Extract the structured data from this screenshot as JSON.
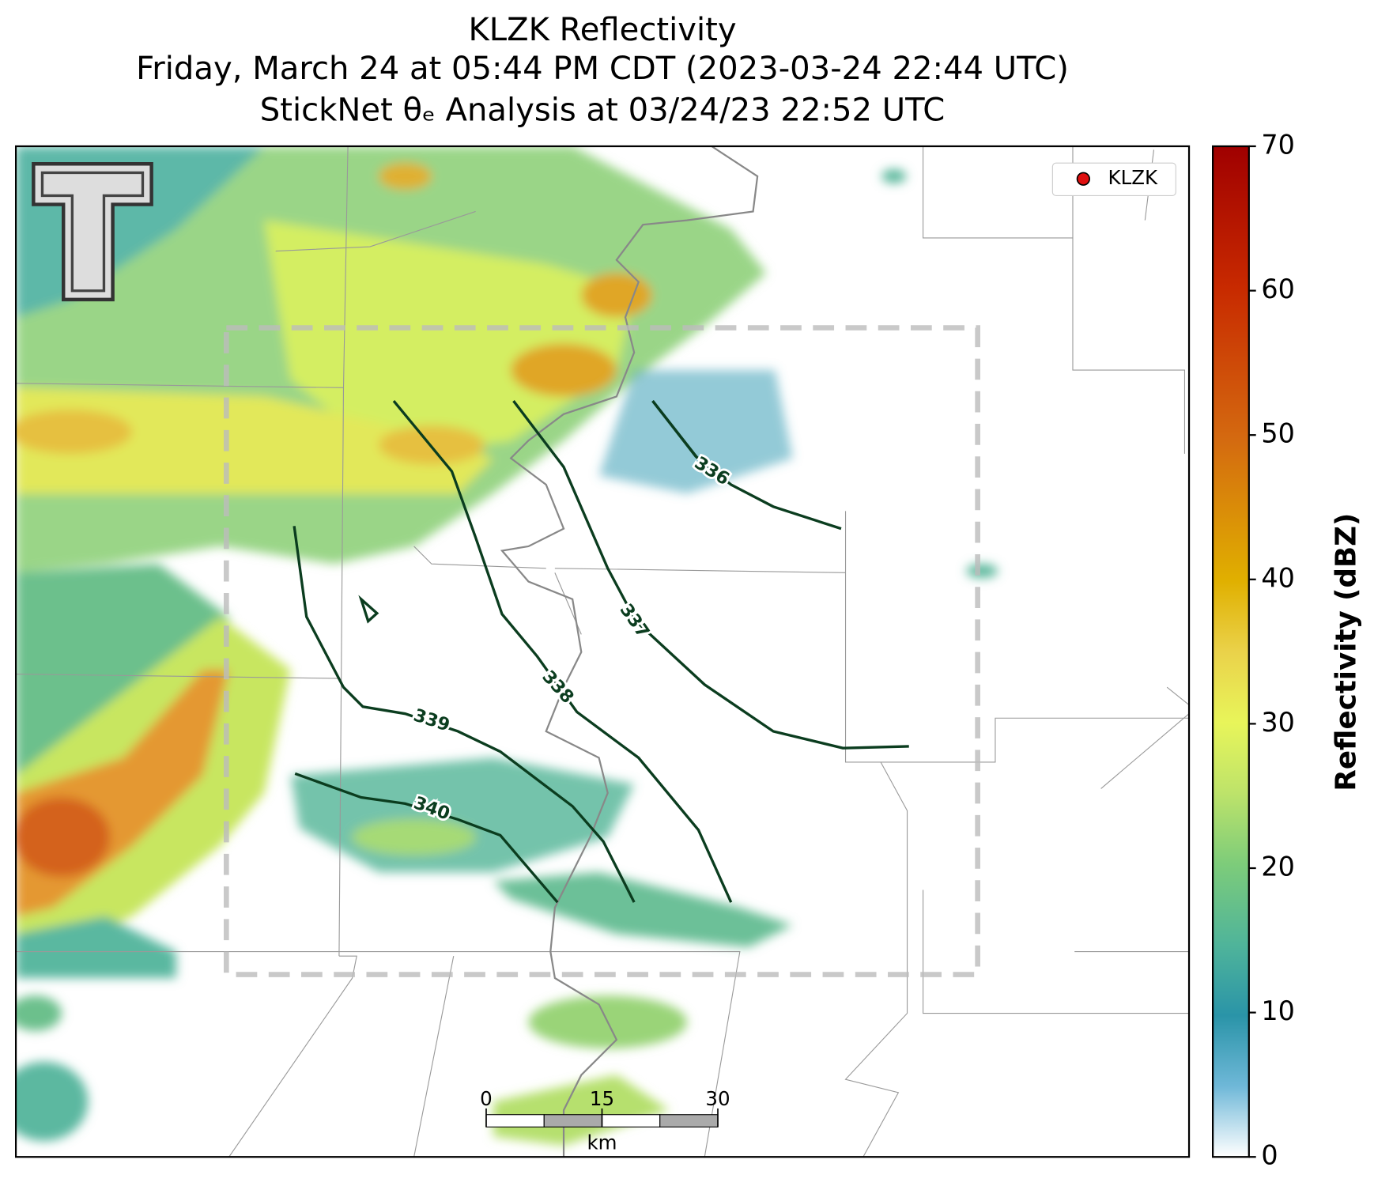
{
  "title": [
    "KLZK Reflectivity",
    "Friday, March 24 at 05:44 PM CDT (2023-03-24 22:44 UTC)",
    "StickNet θₑ Analysis at 03/24/23 22:52 UTC"
  ],
  "legend": {
    "label": "KLZK"
  },
  "colorbar": {
    "label": "Reflectivity (dBZ)",
    "lim": [
      0,
      70
    ],
    "ticks": [
      0,
      10,
      20,
      30,
      40,
      50,
      60,
      70
    ]
  },
  "contours": [
    336,
    337,
    338,
    339,
    340
  ],
  "scale_bar": {
    "lim": [
      0,
      30
    ],
    "ticks": [
      0,
      15,
      30
    ],
    "unit": "km"
  }
}
